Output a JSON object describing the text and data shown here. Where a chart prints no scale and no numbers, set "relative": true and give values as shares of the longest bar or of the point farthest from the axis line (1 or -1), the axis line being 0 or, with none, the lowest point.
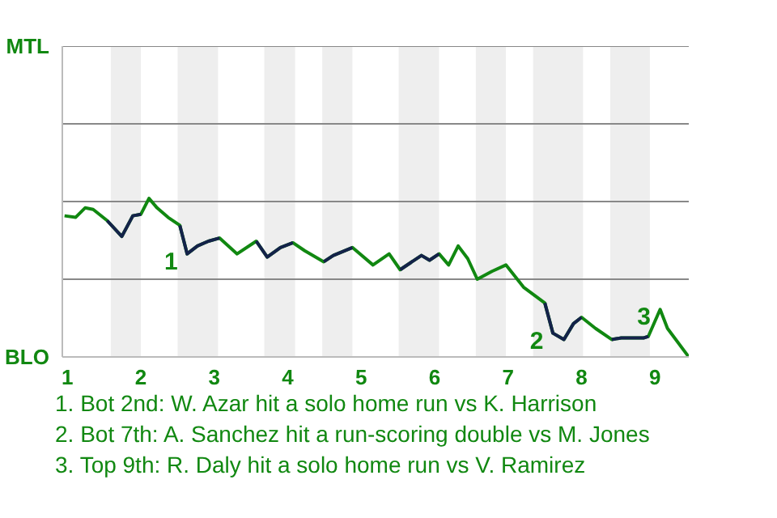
{
  "chart_data": {
    "type": "line",
    "relative": true,
    "x": [
      0.96,
      1.11,
      1.24,
      1.35,
      1.54,
      1.74,
      1.89,
      2.0,
      2.11,
      2.22,
      2.37,
      2.53,
      2.63,
      2.77,
      2.92,
      3.07,
      3.31,
      3.57,
      3.72,
      3.9,
      4.07,
      4.23,
      4.49,
      4.62,
      4.88,
      5.16,
      5.38,
      5.53,
      5.69,
      5.82,
      5.93,
      6.06,
      6.19,
      6.32,
      6.45,
      6.58,
      6.78,
      6.97,
      7.21,
      7.5,
      7.61,
      7.76,
      7.89,
      8.0,
      8.19,
      8.41,
      8.54,
      8.85,
      8.91,
      9.07,
      9.17,
      9.46
    ],
    "series": [
      {
        "color": "#118811",
        "values": [
          0.89,
          0.88,
          0.94,
          0.93,
          0.86,
          0.76,
          0.89,
          0.9,
          1,
          0.94,
          0.88,
          0.83,
          0.65,
          0.7,
          0.73,
          0.75,
          0.65,
          0.73,
          0.63,
          0.69,
          0.72,
          0.67,
          0.6,
          0.64,
          0.69,
          0.58,
          0.65,
          0.55,
          0.6,
          0.64,
          0.61,
          0.65,
          0.58,
          0.7,
          0.62,
          0.49,
          0.54,
          0.58,
          0.44,
          0.34,
          0.15,
          0.11,
          0.21,
          0.25,
          0.18,
          0.11,
          0.12,
          0.12,
          0.13,
          0.3,
          0.18,
          0
        ]
      },
      {
        "color": "#14224a",
        "values": [
          null,
          null,
          null,
          null,
          0.86,
          0.76,
          0.89,
          0.9,
          null,
          null,
          null,
          0.83,
          0.65,
          0.7,
          0.73,
          0.75,
          null,
          0.73,
          0.63,
          0.69,
          0.72,
          null,
          0.6,
          0.64,
          0.69,
          null,
          null,
          0.55,
          0.6,
          0.64,
          0.61,
          0.65,
          null,
          null,
          null,
          null,
          null,
          null,
          null,
          0.34,
          0.15,
          0.11,
          0.21,
          0.25,
          null,
          0.11,
          0.12,
          0.12,
          0.13,
          null,
          null,
          null
        ]
      }
    ],
    "xlim": [
      0.93,
      9.46
    ],
    "xticks": [
      1,
      2,
      3,
      4,
      5,
      6,
      7,
      8,
      9
    ],
    "marker": "none",
    "line_style": "solid",
    "ref_lines": [
      {
        "axis": "y",
        "value": 0.49,
        "color": "#888888"
      },
      {
        "axis": "y",
        "value": 0.98,
        "color": "#888888"
      },
      {
        "axis": "y",
        "value": 1.47,
        "color": "#888888"
      },
      {
        "axis": "y",
        "value": 1.96,
        "color": "#888888"
      }
    ],
    "bands": [
      {
        "axis": "x",
        "from": 1.59,
        "to": 2.0,
        "color": "#eeeeee"
      },
      {
        "axis": "x",
        "from": 2.5,
        "to": 3.05,
        "color": "#eeeeee"
      },
      {
        "axis": "x",
        "from": 3.68,
        "to": 4.1,
        "color": "#eeeeee"
      },
      {
        "axis": "x",
        "from": 4.47,
        "to": 4.88,
        "color": "#eeeeee"
      },
      {
        "axis": "x",
        "from": 5.51,
        "to": 6.06,
        "color": "#eeeeee"
      },
      {
        "axis": "x",
        "from": 6.56,
        "to": 6.97,
        "color": "#eeeeee"
      },
      {
        "axis": "x",
        "from": 7.34,
        "to": 8.02,
        "color": "#eeeeee"
      },
      {
        "axis": "x",
        "from": 8.39,
        "to": 8.93,
        "color": "#eeeeee"
      }
    ],
    "annotations": [
      "MTL",
      "BLO",
      {
        "text": "1",
        "x": 2.63,
        "y": 0.65
      },
      {
        "text": "2",
        "x": 7.61,
        "y": 0.15
      },
      {
        "text": "3",
        "x": 9.07,
        "y": 0.3
      },
      "1. Bot 2nd: W. Azar hit a solo home run vs K. Harrison",
      "2. Bot 7th: A. Sanchez hit a run-scoring double vs M. Jones",
      "3. Top 9th: R. Daly hit a solo home run vs V. Ramirez"
    ]
  }
}
